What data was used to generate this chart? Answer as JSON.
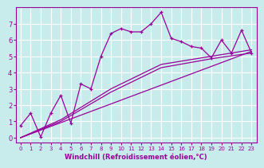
{
  "title": "",
  "xlabel": "Windchill (Refroidissement éolien,°C)",
  "ylabel": "",
  "bg_color": "#c8ecec",
  "line_color": "#990099",
  "grid_color": "#ffffff",
  "xlim": [
    -0.5,
    23.5
  ],
  "ylim": [
    -0.3,
    8.0
  ],
  "xticks": [
    0,
    1,
    2,
    3,
    4,
    5,
    6,
    7,
    8,
    9,
    10,
    11,
    12,
    13,
    14,
    15,
    16,
    17,
    18,
    19,
    20,
    21,
    22,
    23
  ],
  "yticks": [
    0,
    1,
    2,
    3,
    4,
    5,
    6,
    7
  ],
  "series1_x": [
    0,
    1,
    2,
    3,
    4,
    5,
    6,
    7,
    8,
    9,
    10,
    11,
    12,
    13,
    14,
    15,
    16,
    17,
    18,
    19,
    20,
    21,
    22,
    23
  ],
  "series1_y": [
    0.75,
    1.5,
    0.05,
    1.5,
    2.6,
    0.9,
    3.3,
    3.0,
    5.0,
    6.4,
    6.7,
    6.5,
    6.5,
    7.0,
    7.7,
    6.1,
    5.9,
    5.6,
    5.5,
    4.9,
    6.0,
    5.2,
    6.6,
    5.2
  ],
  "series2_x": [
    0,
    4,
    9,
    14,
    19,
    23
  ],
  "series2_y": [
    0.0,
    1.0,
    2.8,
    4.3,
    4.85,
    5.2
  ],
  "series3_x": [
    0,
    4,
    9,
    14,
    19,
    23
  ],
  "series3_y": [
    0.0,
    1.1,
    3.0,
    4.5,
    5.0,
    5.4
  ],
  "series4_x": [
    0,
    23
  ],
  "series4_y": [
    0.0,
    5.3
  ]
}
